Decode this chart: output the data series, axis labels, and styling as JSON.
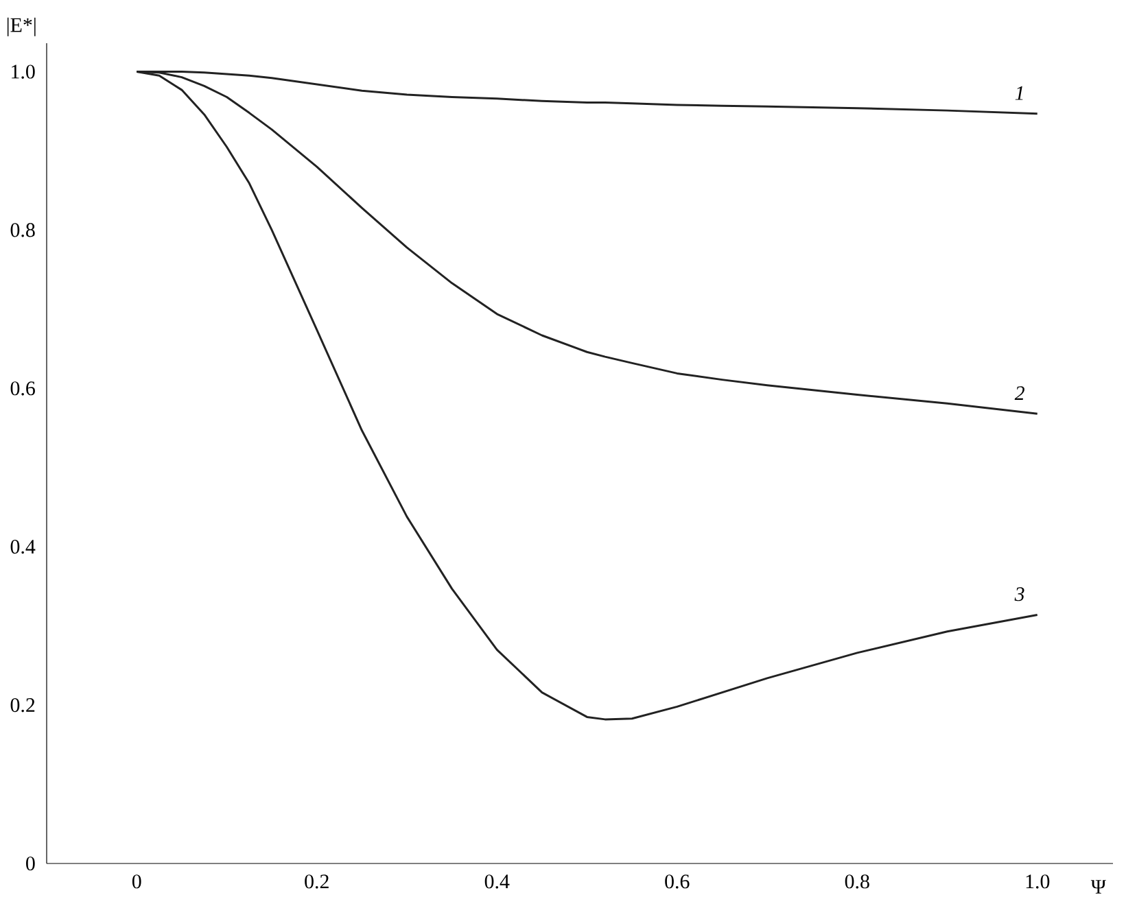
{
  "chart_data": {
    "type": "line",
    "xlabel": "Ψ",
    "ylabel": "|E*|",
    "xlim": [
      -0.1,
      1.084
    ],
    "ylim": [
      0,
      1.036
    ],
    "xticks": [
      0,
      0.2,
      0.4,
      0.6,
      0.8,
      {
        "value": 1.0,
        "label": "1.0"
      }
    ],
    "yticks": [
      0,
      0.2,
      0.4,
      0.6,
      0.8,
      {
        "value": 1.0,
        "label": "1.0"
      }
    ],
    "x": [
      0,
      0.025,
      0.05,
      0.075,
      0.1,
      0.125,
      0.15,
      0.2,
      0.25,
      0.3,
      0.35,
      0.4,
      0.45,
      0.5,
      0.52,
      0.55,
      0.6,
      0.65,
      0.7,
      0.8,
      0.9,
      1.0
    ],
    "series": [
      {
        "name": "1",
        "color": "#222222",
        "values": [
          1.0,
          1.0,
          1.0,
          0.999,
          0.997,
          0.995,
          0.992,
          0.984,
          0.976,
          0.971,
          0.968,
          0.966,
          0.963,
          0.961,
          0.961,
          0.96,
          0.958,
          0.957,
          0.956,
          0.954,
          0.951,
          0.947
        ]
      },
      {
        "name": "2",
        "color": "#222222",
        "values": [
          1.0,
          0.999,
          0.993,
          0.982,
          0.968,
          0.948,
          0.927,
          0.88,
          0.828,
          0.778,
          0.733,
          0.694,
          0.667,
          0.646,
          0.64,
          0.632,
          0.619,
          0.611,
          0.604,
          0.592,
          0.581,
          0.568
        ]
      },
      {
        "name": "3",
        "color": "#222222",
        "values": [
          1.0,
          0.995,
          0.977,
          0.946,
          0.905,
          0.859,
          0.8,
          0.674,
          0.547,
          0.438,
          0.347,
          0.27,
          0.216,
          0.185,
          0.182,
          0.183,
          0.198,
          0.216,
          0.234,
          0.266,
          0.293,
          0.314
        ]
      }
    ],
    "line_style": "solid",
    "marker": "none",
    "grid": false
  }
}
